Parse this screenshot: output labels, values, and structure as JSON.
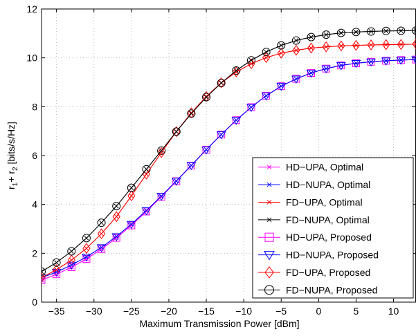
{
  "chart_data": {
    "type": "line",
    "xlabel": "Maximum Transmission Power [dBm]",
    "ylabel": {
      "main": "r",
      "sub1": "1",
      "plus": "+ r",
      "sub2": "2",
      "unit": " [bits/s/Hz]"
    },
    "xlim": [
      -37,
      13
    ],
    "ylim": [
      0,
      12
    ],
    "xticks": [
      -35,
      -30,
      -25,
      -20,
      -15,
      -10,
      -5,
      0,
      5,
      10
    ],
    "yticks": [
      0,
      2,
      4,
      6,
      8,
      10,
      12
    ],
    "grid": true,
    "legend_position": "bottom-right",
    "x": [
      -37,
      -35,
      -33,
      -31,
      -29,
      -27,
      -25,
      -23,
      -21,
      -19,
      -17,
      -15,
      -13,
      -11,
      -9,
      -7,
      -5,
      -3,
      -1,
      1,
      3,
      5,
      7,
      9,
      11,
      13
    ],
    "series": [
      {
        "name": "HD−UPA, Optimal",
        "color": "#ff00ff",
        "marker": "x",
        "values": [
          0.9,
          1.14,
          1.43,
          1.77,
          2.17,
          2.63,
          3.14,
          3.71,
          4.31,
          4.95,
          5.59,
          6.24,
          6.86,
          7.45,
          7.98,
          8.45,
          8.84,
          9.14,
          9.38,
          9.56,
          9.69,
          9.78,
          9.84,
          9.88,
          9.91,
          9.93
        ]
      },
      {
        "name": "HD−NUPA, Optimal",
        "color": "#0000ff",
        "marker": "x",
        "values": [
          1.0,
          1.23,
          1.52,
          1.85,
          2.24,
          2.69,
          3.19,
          3.75,
          4.34,
          4.96,
          5.6,
          6.24,
          6.86,
          7.45,
          7.98,
          8.45,
          8.84,
          9.14,
          9.38,
          9.56,
          9.69,
          9.78,
          9.84,
          9.88,
          9.91,
          9.93
        ]
      },
      {
        "name": "FD−UPA, Optimal",
        "color": "#ff0000",
        "marker": "x",
        "values": [
          1.0,
          1.33,
          1.72,
          2.2,
          2.8,
          3.5,
          4.35,
          5.24,
          6.12,
          6.98,
          7.75,
          8.42,
          8.98,
          9.42,
          9.76,
          10.01,
          10.19,
          10.31,
          10.4,
          10.45,
          10.49,
          10.51,
          10.53,
          10.54,
          10.55,
          10.56
        ]
      },
      {
        "name": "FD−NUPA, Optimal",
        "color": "#000000",
        "marker": "x",
        "values": [
          1.25,
          1.62,
          2.08,
          2.62,
          3.25,
          3.93,
          4.68,
          5.44,
          6.2,
          6.98,
          7.72,
          8.39,
          8.97,
          9.48,
          9.9,
          10.24,
          10.51,
          10.71,
          10.85,
          10.95,
          11.02,
          11.06,
          11.08,
          11.1,
          11.11,
          11.12
        ]
      },
      {
        "name": "HD−UPA, Proposed",
        "color": "#ff00ff",
        "marker": "square",
        "values": [
          0.9,
          1.14,
          1.43,
          1.77,
          2.17,
          2.63,
          3.14,
          3.71,
          4.31,
          4.95,
          5.59,
          6.24,
          6.86,
          7.45,
          7.98,
          8.45,
          8.84,
          9.14,
          9.38,
          9.56,
          9.69,
          9.78,
          9.84,
          9.88,
          9.91,
          9.93
        ]
      },
      {
        "name": "HD−NUPA, Proposed",
        "color": "#0000ff",
        "marker": "triangle-down",
        "values": [
          1.0,
          1.23,
          1.52,
          1.85,
          2.24,
          2.69,
          3.19,
          3.75,
          4.34,
          4.96,
          5.6,
          6.24,
          6.86,
          7.45,
          7.98,
          8.45,
          8.84,
          9.14,
          9.38,
          9.56,
          9.69,
          9.78,
          9.84,
          9.88,
          9.91,
          9.93
        ]
      },
      {
        "name": "FD−UPA, Proposed",
        "color": "#ff0000",
        "marker": "diamond",
        "values": [
          1.0,
          1.33,
          1.72,
          2.2,
          2.8,
          3.5,
          4.35,
          5.24,
          6.12,
          6.98,
          7.75,
          8.42,
          8.98,
          9.42,
          9.76,
          10.01,
          10.19,
          10.31,
          10.4,
          10.45,
          10.49,
          10.51,
          10.53,
          10.54,
          10.55,
          10.56
        ]
      },
      {
        "name": "FD−NUPA, Proposed",
        "color": "#000000",
        "marker": "circle",
        "values": [
          1.25,
          1.62,
          2.08,
          2.62,
          3.25,
          3.93,
          4.68,
          5.44,
          6.2,
          6.98,
          7.72,
          8.39,
          8.97,
          9.48,
          9.9,
          10.24,
          10.51,
          10.71,
          10.85,
          10.95,
          11.02,
          11.06,
          11.08,
          11.1,
          11.11,
          11.12
        ]
      }
    ]
  }
}
